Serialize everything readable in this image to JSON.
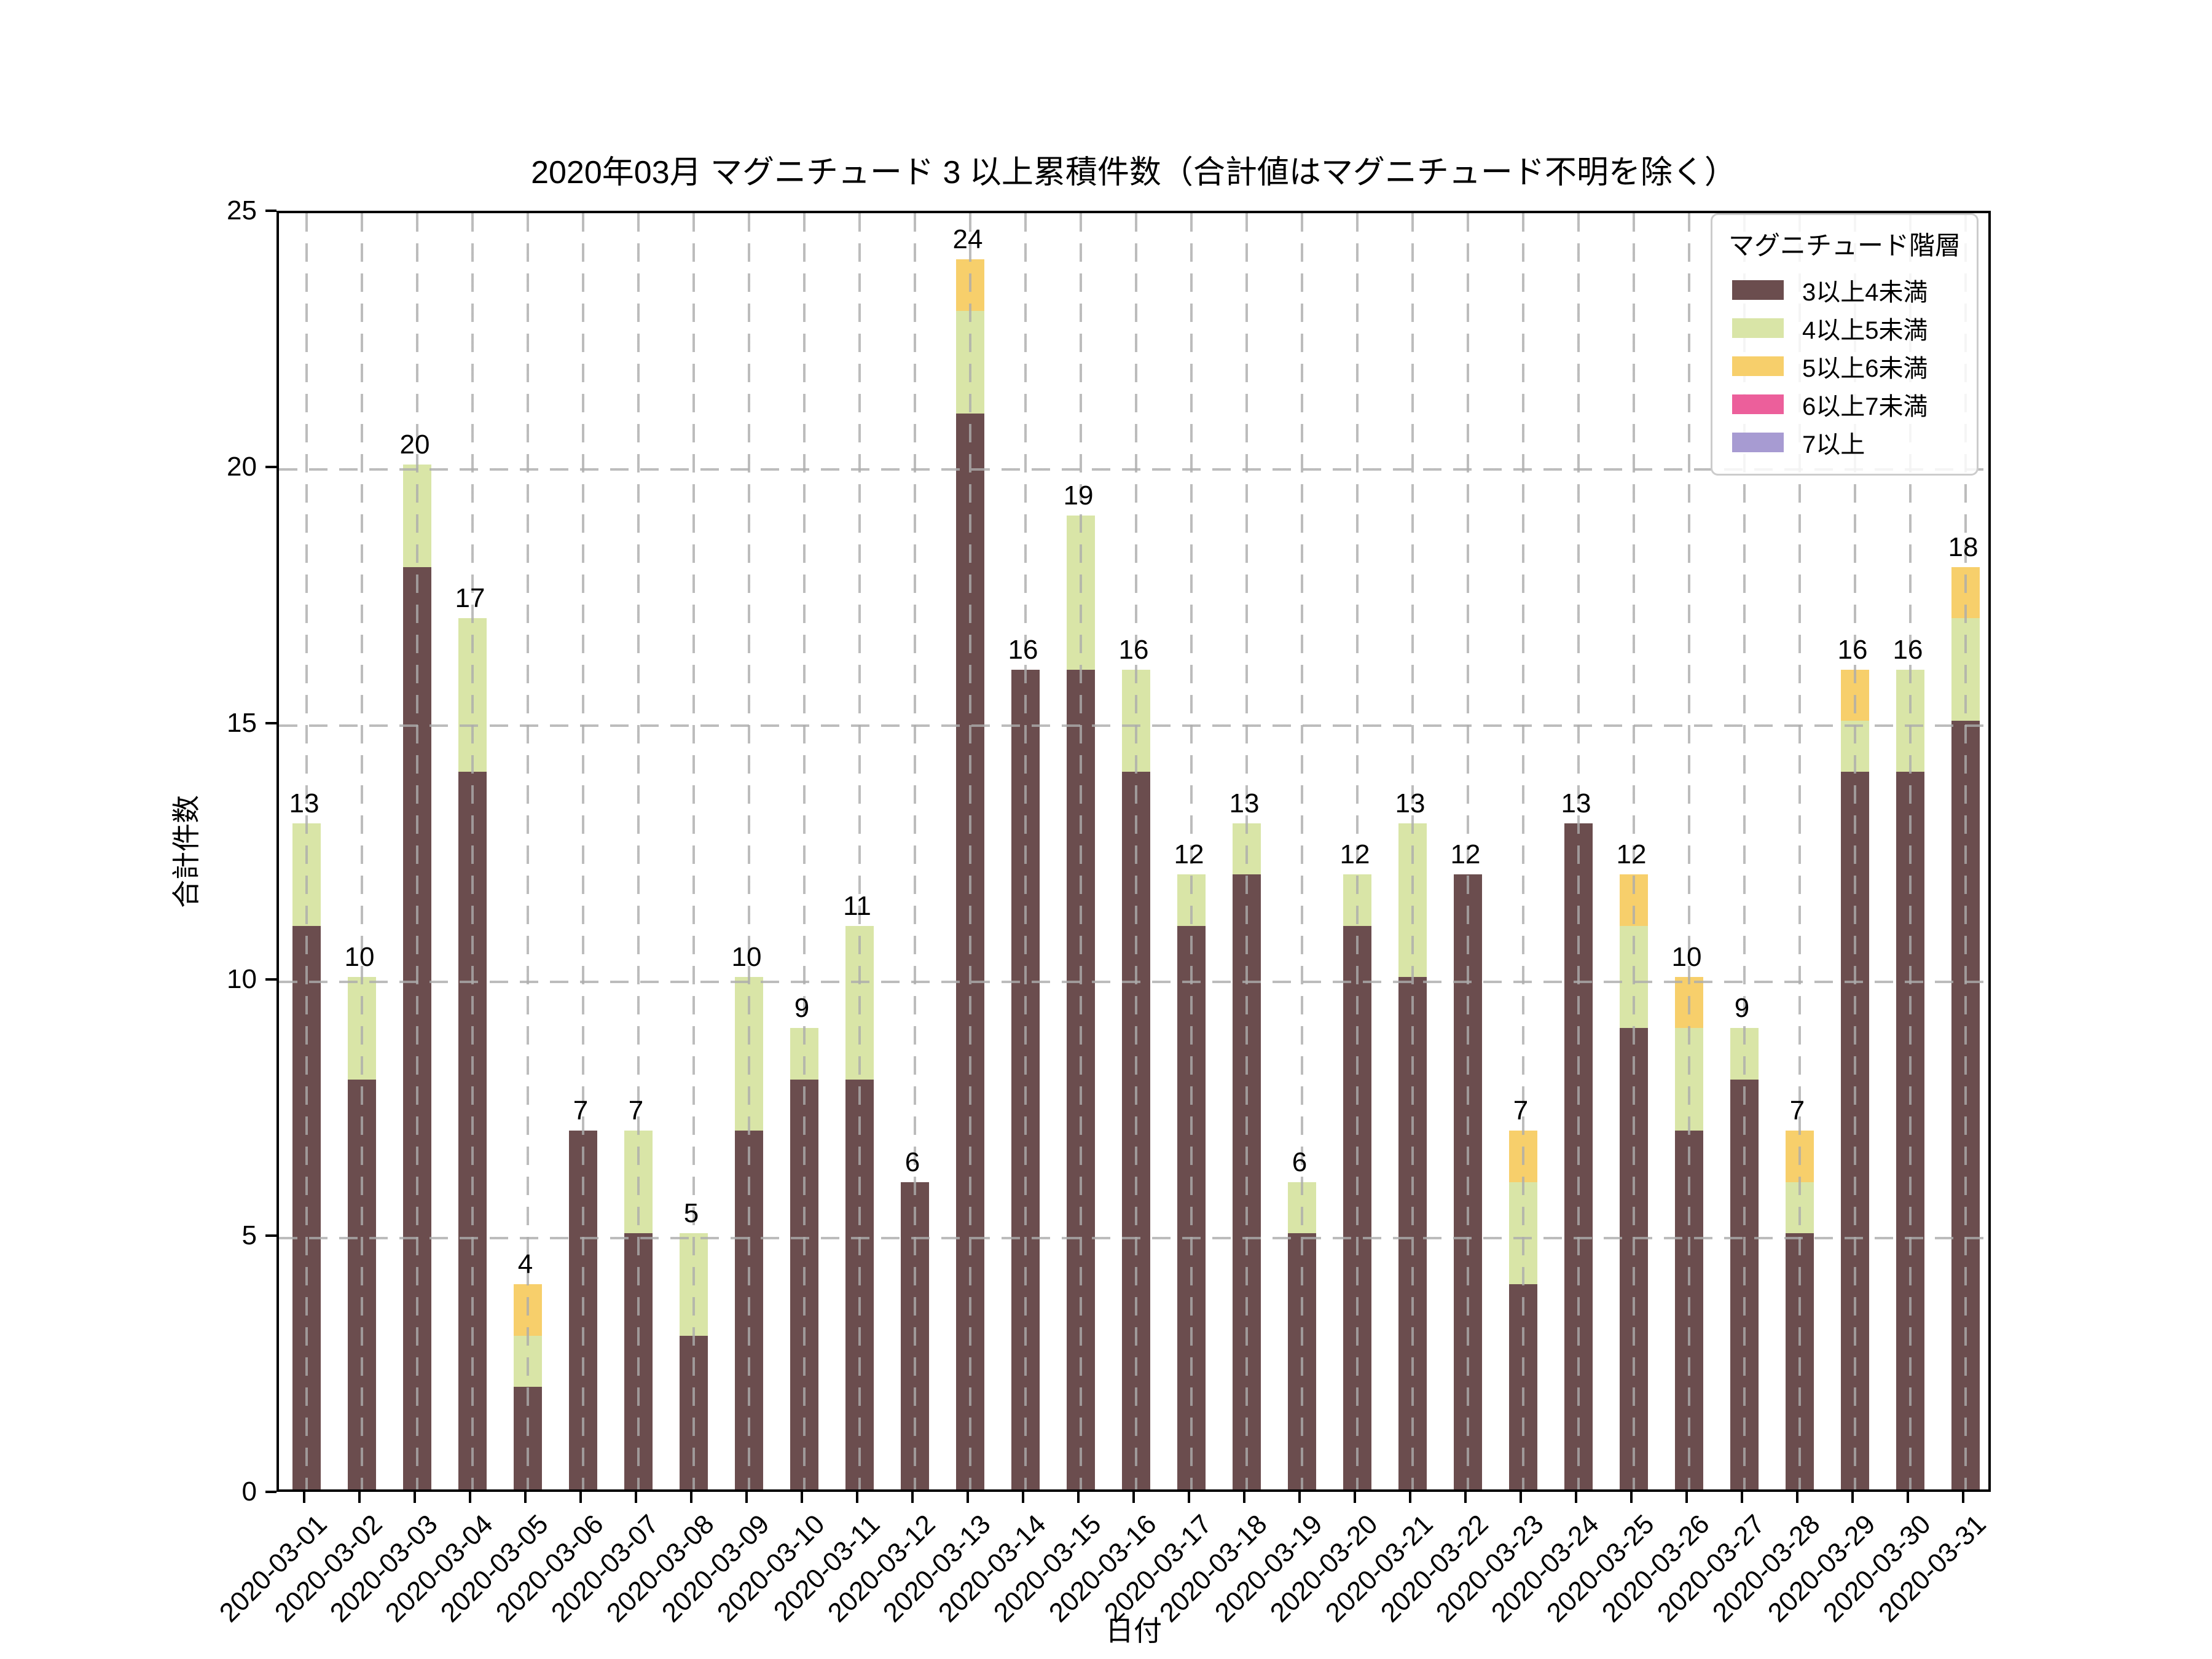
{
  "title": "2020年03月 マグニチュード 3 以上累積件数（合計値はマグニチュード不明を除く）",
  "chart_data": {
    "type": "bar",
    "stacked": true,
    "title": "2020年03月 マグニチュード 3 以上累積件数（合計値はマグニチュード不明を除く）",
    "xlabel": "日付",
    "ylabel": "合計件数",
    "ylim": [
      0,
      25
    ],
    "yticks": [
      0,
      5,
      10,
      15,
      20,
      25
    ],
    "grid": "dashed gray, horizontal and vertical, drawn above bars",
    "legend_title": "マグニチュード階層",
    "legend_position": "upper right",
    "categories": [
      "2020-03-01",
      "2020-03-02",
      "2020-03-03",
      "2020-03-04",
      "2020-03-05",
      "2020-03-06",
      "2020-03-07",
      "2020-03-08",
      "2020-03-09",
      "2020-03-10",
      "2020-03-11",
      "2020-03-12",
      "2020-03-13",
      "2020-03-14",
      "2020-03-15",
      "2020-03-16",
      "2020-03-17",
      "2020-03-18",
      "2020-03-19",
      "2020-03-20",
      "2020-03-21",
      "2020-03-22",
      "2020-03-23",
      "2020-03-24",
      "2020-03-25",
      "2020-03-26",
      "2020-03-27",
      "2020-03-28",
      "2020-03-29",
      "2020-03-30",
      "2020-03-31"
    ],
    "series": [
      {
        "name": "3以上4未満",
        "color": "#6b4d4e",
        "values": [
          11,
          8,
          18,
          14,
          2,
          7,
          5,
          3,
          7,
          8,
          8,
          6,
          21,
          16,
          16,
          14,
          11,
          12,
          5,
          11,
          10,
          12,
          4,
          13,
          9,
          7,
          8,
          5,
          14,
          14,
          15
        ]
      },
      {
        "name": "4以上5未満",
        "color": "#d9e5a7",
        "values": [
          2,
          2,
          2,
          3,
          1,
          0,
          2,
          2,
          3,
          1,
          3,
          0,
          2,
          0,
          3,
          2,
          1,
          1,
          1,
          1,
          3,
          0,
          2,
          0,
          2,
          2,
          1,
          1,
          1,
          2,
          2
        ]
      },
      {
        "name": "5以上6未満",
        "color": "#f7cf6b",
        "values": [
          0,
          0,
          0,
          0,
          1,
          0,
          0,
          0,
          0,
          0,
          0,
          0,
          1,
          0,
          0,
          0,
          0,
          0,
          0,
          0,
          0,
          0,
          1,
          0,
          1,
          1,
          0,
          1,
          1,
          0,
          1
        ]
      },
      {
        "name": "6以上7未満",
        "color": "#ec5f9b",
        "values": [
          0,
          0,
          0,
          0,
          0,
          0,
          0,
          0,
          0,
          0,
          0,
          0,
          0,
          0,
          0,
          0,
          0,
          0,
          0,
          0,
          0,
          0,
          0,
          0,
          0,
          0,
          0,
          0,
          0,
          0,
          0
        ]
      },
      {
        "name": "7以上",
        "color": "#a79bd2",
        "values": [
          0,
          0,
          0,
          0,
          0,
          0,
          0,
          0,
          0,
          0,
          0,
          0,
          0,
          0,
          0,
          0,
          0,
          0,
          0,
          0,
          0,
          0,
          0,
          0,
          0,
          0,
          0,
          0,
          0,
          0,
          0
        ]
      }
    ],
    "totals": [
      13,
      10,
      20,
      17,
      4,
      7,
      7,
      5,
      10,
      9,
      11,
      6,
      24,
      16,
      19,
      16,
      12,
      13,
      6,
      12,
      13,
      12,
      7,
      13,
      12,
      10,
      9,
      7,
      16,
      16,
      18
    ]
  },
  "colors": {
    "background": "#ffffff",
    "spine": "#000000",
    "grid": "#c2c2c2",
    "text": "#000000",
    "legend_border": "#cccccc"
  }
}
